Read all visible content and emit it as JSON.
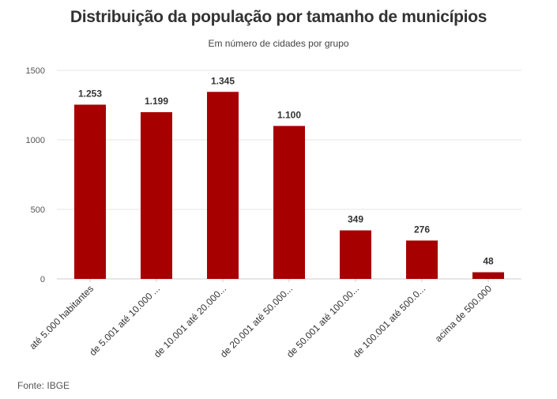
{
  "chart_data": {
    "type": "bar",
    "title": "Distribuição da população por tamanho de municípios",
    "subtitle": "Em número de cidades por grupo",
    "categories": [
      "até 5.000 habitantes",
      "de 5.001 até 10.000 ...",
      "de 10.001 até 20.000...",
      "de 20.001 até 50.000...",
      "de 50.001 até 100.00...",
      "de 100.001 até 500.0...",
      "acima de 500.000"
    ],
    "values": [
      1253,
      1199,
      1345,
      1100,
      349,
      276,
      48
    ],
    "value_labels": [
      "1.253",
      "1.199",
      "1.345",
      "1.100",
      "349",
      "276",
      "48"
    ],
    "yticks": [
      0,
      500,
      1000,
      1500
    ],
    "ytick_labels": [
      "0",
      "500",
      "1000",
      "1500"
    ],
    "ylim": [
      0,
      1500
    ],
    "xlabel": "",
    "ylabel": "",
    "grid": true,
    "bar_color": "#a60000"
  },
  "source": "Fonte: IBGE"
}
